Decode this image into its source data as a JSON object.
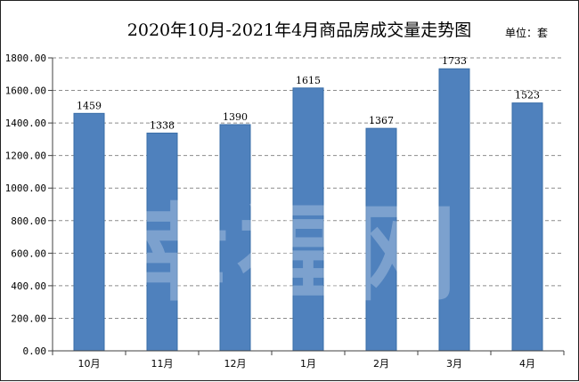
{
  "chart_data": {
    "type": "bar",
    "title": "2020年10月-2021年4月商品房成交量走势图",
    "unit_label": "单位：套",
    "categories": [
      "10月",
      "11月",
      "12月",
      "1月",
      "2月",
      "3月",
      "4月"
    ],
    "values": [
      1459,
      1338,
      1390,
      1615,
      1367,
      1733,
      1523
    ],
    "ylim": [
      0,
      1800
    ],
    "yticks": [
      0,
      200,
      400,
      600,
      800,
      1000,
      1200,
      1400,
      1600,
      1800
    ],
    "ytick_labels": [
      "0.00",
      "200.00",
      "400.00",
      "600.00",
      "800.00",
      "1000.00",
      "1200.00",
      "1400.00",
      "1600.00",
      "1800.00"
    ],
    "grid": true,
    "legend": "none",
    "colors": {
      "bar": "#4f81bd",
      "bar_edge": "#3a6ea8",
      "grid": "#8c8c8c",
      "axis": "#404040"
    },
    "watermark": "幸福网"
  }
}
